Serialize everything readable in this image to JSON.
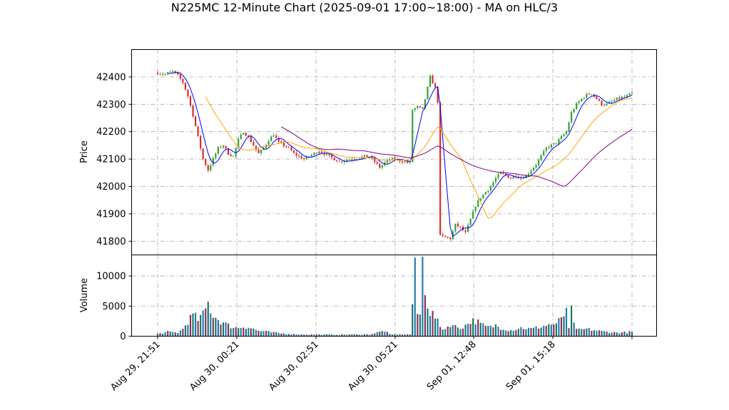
{
  "chart_data": {
    "type": "candlestick",
    "title": "N225MC 12-Minute Chart (2025-09-01 17:00~18:00) - MA on HLC/3",
    "x_tick_labels": [
      "Aug 29, 21:51",
      "Aug 30, 00:21",
      "Aug 30, 02:51",
      "Aug 30, 05:21",
      "Sep 01, 12:48",
      "Sep 01, 15:18"
    ],
    "price_panel": {
      "ylabel": "Price",
      "ylim": [
        41750,
        42500
      ],
      "yticks": [
        41800,
        41900,
        42000,
        42100,
        42200,
        42300,
        42400
      ],
      "grid": true
    },
    "volume_panel": {
      "ylabel": "Volume",
      "ylim": [
        0,
        13500
      ],
      "yticks": [
        0,
        5000,
        10000
      ],
      "grid": true
    },
    "colors": {
      "up": "#2ca02c",
      "down": "#d62728",
      "vol_a": "#1f77b4",
      "vol_b": "#8c2d52",
      "vol_c": "#107860",
      "ma_fast": "#0000ff",
      "ma_mid": "#ffa500",
      "ma_slow": "#800080"
    },
    "price_anchors": [
      [
        0,
        42415
      ],
      [
        3,
        42410
      ],
      [
        6,
        42420
      ],
      [
        8,
        42405
      ],
      [
        10,
        42380
      ],
      [
        12,
        42330
      ],
      [
        14,
        42260
      ],
      [
        16,
        42180
      ],
      [
        18,
        42100
      ],
      [
        20,
        42060
      ],
      [
        22,
        42100
      ],
      [
        24,
        42140
      ],
      [
        26,
        42150
      ],
      [
        28,
        42120
      ],
      [
        30,
        42110
      ],
      [
        32,
        42170
      ],
      [
        34,
        42200
      ],
      [
        36,
        42180
      ],
      [
        38,
        42150
      ],
      [
        40,
        42120
      ],
      [
        42,
        42140
      ],
      [
        44,
        42170
      ],
      [
        46,
        42190
      ],
      [
        48,
        42160
      ],
      [
        50,
        42150
      ],
      [
        52,
        42140
      ],
      [
        54,
        42120
      ],
      [
        56,
        42110
      ],
      [
        58,
        42100
      ],
      [
        60,
        42110
      ],
      [
        62,
        42120
      ],
      [
        64,
        42130
      ],
      [
        66,
        42120
      ],
      [
        68,
        42110
      ],
      [
        70,
        42100
      ],
      [
        72,
        42090
      ],
      [
        74,
        42095
      ],
      [
        76,
        42100
      ],
      [
        78,
        42100
      ],
      [
        80,
        42105
      ],
      [
        82,
        42110
      ],
      [
        84,
        42110
      ],
      [
        86,
        42090
      ],
      [
        88,
        42070
      ],
      [
        90,
        42085
      ],
      [
        92,
        42100
      ],
      [
        94,
        42100
      ],
      [
        96,
        42095
      ],
      [
        98,
        42090
      ],
      [
        100,
        42085
      ],
      [
        101,
        42280
      ],
      [
        103,
        42290
      ],
      [
        105,
        42280
      ],
      [
        106,
        42320
      ],
      [
        108,
        42400
      ],
      [
        110,
        42360
      ],
      [
        111,
        42310
      ],
      [
        112,
        41820
      ],
      [
        114,
        41815
      ],
      [
        116,
        41810
      ],
      [
        118,
        41860
      ],
      [
        120,
        41850
      ],
      [
        122,
        41830
      ],
      [
        124,
        41880
      ],
      [
        126,
        41930
      ],
      [
        128,
        41960
      ],
      [
        130,
        41980
      ],
      [
        132,
        42000
      ],
      [
        134,
        42030
      ],
      [
        136,
        42050
      ],
      [
        138,
        42040
      ],
      [
        140,
        42030
      ],
      [
        142,
        42040
      ],
      [
        144,
        42030
      ],
      [
        146,
        42040
      ],
      [
        148,
        42060
      ],
      [
        150,
        42080
      ],
      [
        152,
        42110
      ],
      [
        154,
        42140
      ],
      [
        156,
        42150
      ],
      [
        158,
        42160
      ],
      [
        160,
        42180
      ],
      [
        162,
        42200
      ],
      [
        164,
        42270
      ],
      [
        166,
        42300
      ],
      [
        168,
        42320
      ],
      [
        170,
        42335
      ],
      [
        172,
        42340
      ],
      [
        174,
        42320
      ],
      [
        176,
        42300
      ],
      [
        178,
        42300
      ],
      [
        180,
        42310
      ],
      [
        182,
        42320
      ],
      [
        184,
        42325
      ],
      [
        186,
        42330
      ],
      [
        188,
        42340
      ]
    ],
    "volume_anchors": [
      [
        0,
        400
      ],
      [
        4,
        700
      ],
      [
        8,
        600
      ],
      [
        10,
        1200
      ],
      [
        12,
        2500
      ],
      [
        14,
        3500
      ],
      [
        16,
        2800
      ],
      [
        18,
        3500
      ],
      [
        20,
        5400
      ],
      [
        22,
        3500
      ],
      [
        24,
        2800
      ],
      [
        26,
        2200
      ],
      [
        28,
        1800
      ],
      [
        30,
        1500
      ],
      [
        32,
        1400
      ],
      [
        34,
        1600
      ],
      [
        36,
        1500
      ],
      [
        38,
        1200
      ],
      [
        40,
        900
      ],
      [
        44,
        700
      ],
      [
        48,
        500
      ],
      [
        56,
        300
      ],
      [
        70,
        250
      ],
      [
        84,
        300
      ],
      [
        88,
        700
      ],
      [
        90,
        900
      ],
      [
        92,
        300
      ],
      [
        100,
        300
      ],
      [
        102,
        10500
      ],
      [
        103,
        3800
      ],
      [
        104,
        3500
      ],
      [
        105,
        12200
      ],
      [
        106,
        8500
      ],
      [
        107,
        5500
      ],
      [
        108,
        4000
      ],
      [
        110,
        3200
      ],
      [
        112,
        1500
      ],
      [
        114,
        1200
      ],
      [
        116,
        2000
      ],
      [
        118,
        1600
      ],
      [
        120,
        1400
      ],
      [
        122,
        1800
      ],
      [
        124,
        2500
      ],
      [
        126,
        2600
      ],
      [
        128,
        2000
      ],
      [
        130,
        1600
      ],
      [
        132,
        1500
      ],
      [
        134,
        1800
      ],
      [
        136,
        1400
      ],
      [
        140,
        1000
      ],
      [
        144,
        1400
      ],
      [
        148,
        1200
      ],
      [
        152,
        1600
      ],
      [
        156,
        2000
      ],
      [
        158,
        1800
      ],
      [
        160,
        3300
      ],
      [
        162,
        3800
      ],
      [
        163,
        1200
      ],
      [
        164,
        4200
      ],
      [
        166,
        1000
      ],
      [
        170,
        1200
      ],
      [
        176,
        800
      ],
      [
        182,
        600
      ],
      [
        188,
        700
      ]
    ],
    "bar_count": 189,
    "ma_periods": [
      5,
      20,
      50
    ],
    "legend": "none"
  }
}
